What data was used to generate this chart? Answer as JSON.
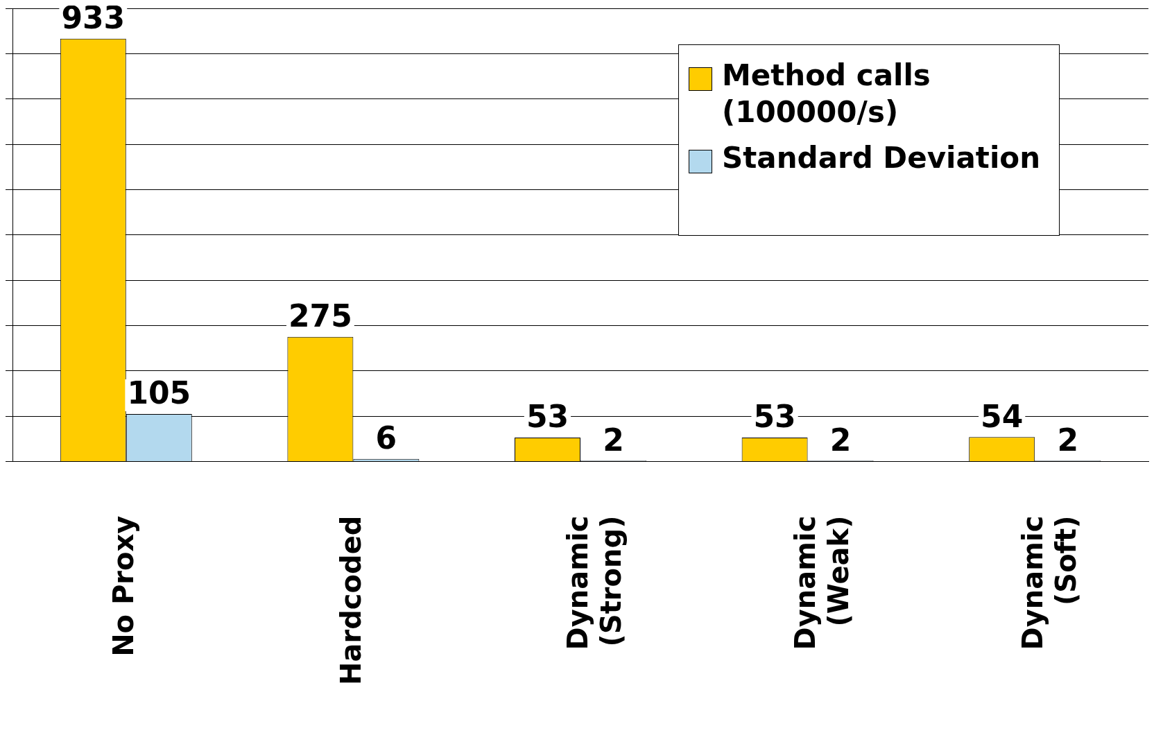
{
  "chart_data": {
    "type": "bar",
    "categories": [
      "No Proxy",
      "Hardcoded",
      "Dynamic\n(Strong)",
      "Dynamic\n(Weak)",
      "Dynamic\n(Soft)"
    ],
    "series": [
      {
        "name": "Method calls (100000/s)",
        "color": "#ffcc00",
        "values": [
          933,
          275,
          53,
          53,
          54
        ]
      },
      {
        "name": "Standard Deviation",
        "color": "#b3d9ee",
        "values": [
          105,
          6,
          2,
          2,
          2
        ]
      }
    ],
    "ylim": [
      0,
      1000
    ],
    "yticks": [
      {
        "value": 0,
        "label": null
      },
      {
        "value": 100,
        "label": null
      },
      {
        "value": 200,
        "label": null
      },
      {
        "value": 300,
        "label": null
      },
      {
        "value": 400,
        "label": null
      },
      {
        "value": 500,
        "label": null
      },
      {
        "value": 600,
        "label": null
      },
      {
        "value": 700,
        "label": null
      },
      {
        "value": 800,
        "label": null
      },
      {
        "value": 900,
        "label": null
      },
      {
        "value": 1000,
        "label": null
      }
    ],
    "tick_labels": "x",
    "grid": "y",
    "legend": "top right",
    "data_labels": true
  }
}
